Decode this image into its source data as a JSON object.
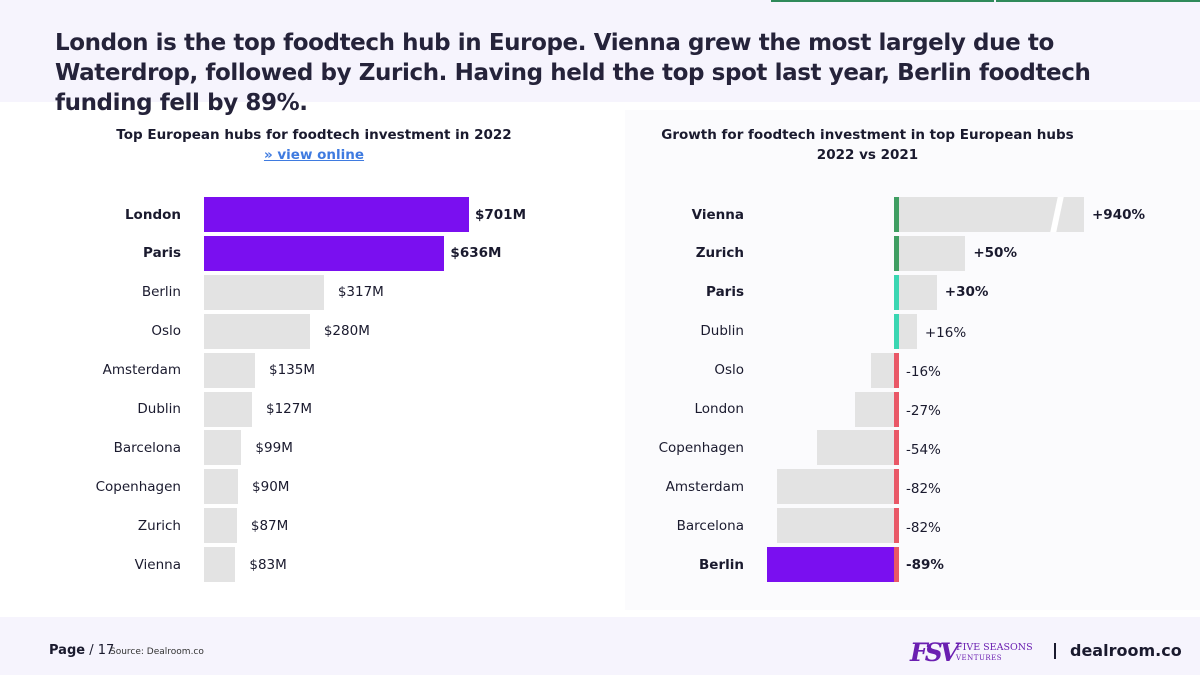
{
  "headline": "London is the top foodtech hub in Europe. Vienna grew the most largely due to Waterdrop, followed by Zurich. Having held the top spot last year, Berlin foodtech funding fell by 89%.",
  "colors": {
    "highlight": "#7a0ff0",
    "neutral": "#e3e3e3",
    "positive_strong": "#3f9e62",
    "positive_light": "#3ad6b2",
    "negative": "#e95867",
    "link": "#3f7be0"
  },
  "chart_data": [
    {
      "type": "bar",
      "orientation": "horizontal",
      "title": "Top European hubs for foodtech investment in 2022",
      "link_text": "» view online",
      "categories": [
        "London",
        "Paris",
        "Berlin",
        "Oslo",
        "Amsterdam",
        "Dublin",
        "Barcelona",
        "Copenhagen",
        "Zurich",
        "Vienna"
      ],
      "values": [
        701,
        636,
        317,
        280,
        135,
        127,
        99,
        90,
        87,
        83
      ],
      "value_labels": [
        "$701M",
        "$636M",
        "$317M",
        "$280M",
        "$135M",
        "$127M",
        "$99M",
        "$90M",
        "$87M",
        "$83M"
      ],
      "highlight": [
        "London",
        "Paris"
      ],
      "unit": "$M"
    },
    {
      "type": "bar",
      "orientation": "horizontal",
      "title": "Growth for foodtech investment in top European hubs",
      "subtitle": "2022 vs 2021",
      "categories": [
        "Vienna",
        "Zurich",
        "Paris",
        "Dublin",
        "Oslo",
        "London",
        "Copenhagen",
        "Amsterdam",
        "Barcelona",
        "Berlin"
      ],
      "values": [
        940,
        50,
        30,
        16,
        -16,
        -27,
        -54,
        -82,
        -82,
        -89
      ],
      "value_labels": [
        "+940%",
        "+50%",
        "+30%",
        "+16%",
        "-16%",
        "-27%",
        "-54%",
        "-82%",
        "-82%",
        "-89%"
      ],
      "bold_labels": [
        "Vienna",
        "Zurich",
        "Paris",
        "Berlin"
      ],
      "highlight": [
        "Berlin"
      ],
      "axis_break": "Vienna",
      "unit": "%"
    }
  ],
  "footer": {
    "page_label": "Page",
    "page_number": "/ 17",
    "source": "Source: Dealroom.co",
    "fsv_mark": "FSV",
    "fsv_name": "FIVE SEASONS",
    "fsv_sub": "VENTURES",
    "brand": "dealroom.co"
  }
}
